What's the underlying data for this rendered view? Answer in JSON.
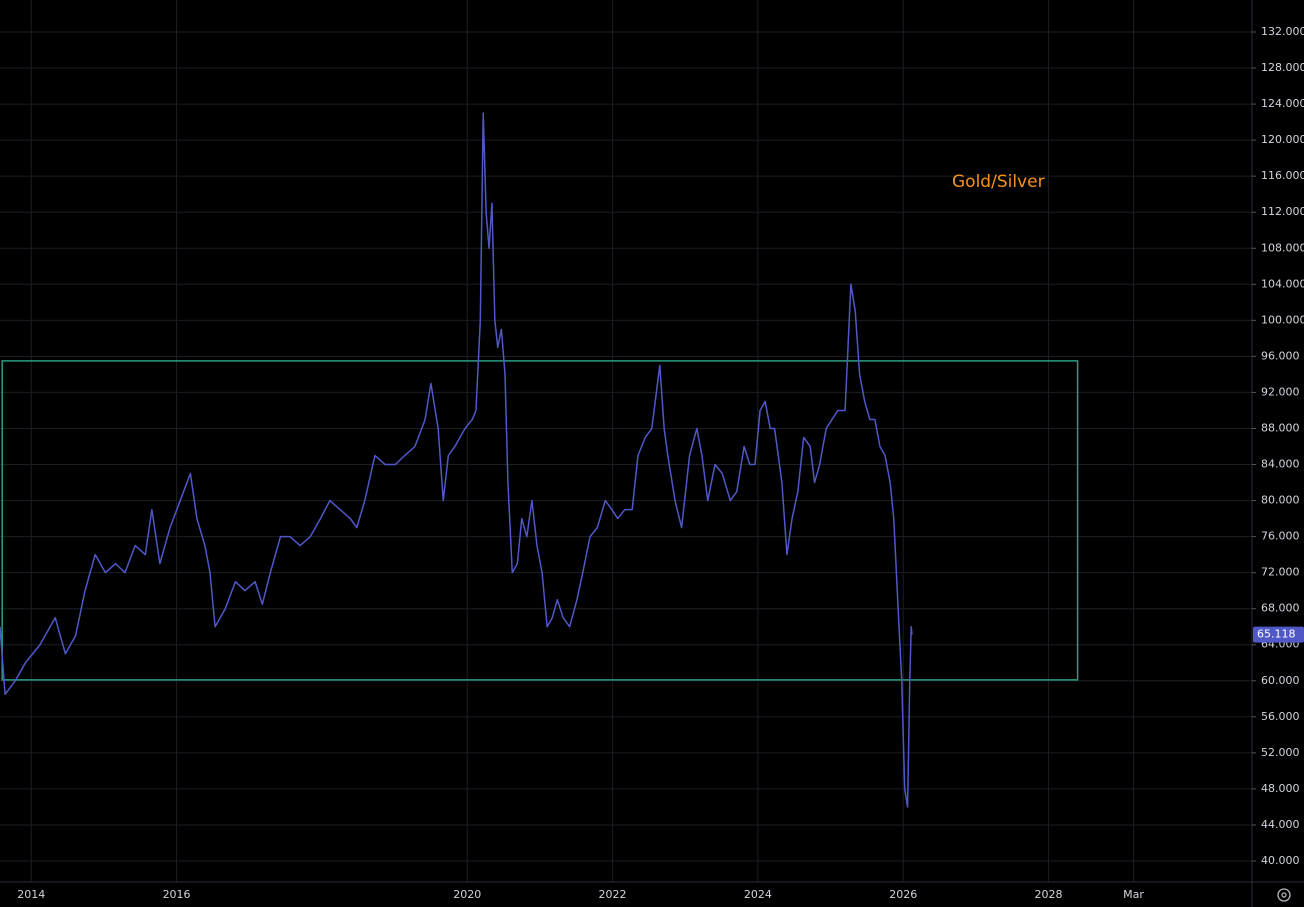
{
  "chart_data": {
    "type": "line",
    "annotation": "Gold/Silver",
    "xlim": [
      2013.57,
      2030.8
    ],
    "ylim": [
      37.67,
      135.55
    ],
    "xticks": [
      2014,
      2016,
      2020,
      2022,
      2024,
      2026,
      2028,
      {
        "value": 2029.17,
        "label": "Mar"
      }
    ],
    "yticks": [
      {
        "value": 40,
        "label": "40.000"
      },
      {
        "value": 44,
        "label": "44.000"
      },
      {
        "value": 48,
        "label": "48.000"
      },
      {
        "value": 52,
        "label": "52.000"
      },
      {
        "value": 56,
        "label": "56.000"
      },
      {
        "value": 60,
        "label": "60.000"
      },
      {
        "value": 64,
        "label": "64.000"
      },
      {
        "value": 68,
        "label": "68.000"
      },
      {
        "value": 72,
        "label": "72.000"
      },
      {
        "value": 76,
        "label": "76.000"
      },
      {
        "value": 80,
        "label": "80.000"
      },
      {
        "value": 84,
        "label": "84.000"
      },
      {
        "value": 88,
        "label": "88.000"
      },
      {
        "value": 92,
        "label": "92.000"
      },
      {
        "value": 96,
        "label": "96.000"
      },
      {
        "value": 100,
        "label": "100.000"
      },
      {
        "value": 104,
        "label": "104.000"
      },
      {
        "value": 108,
        "label": "108.000"
      },
      {
        "value": 112,
        "label": "112.000"
      },
      {
        "value": 116,
        "label": "116.000"
      },
      {
        "value": 120,
        "label": "120.000"
      },
      {
        "value": 124,
        "label": "124.000"
      },
      {
        "value": 128,
        "label": "128.000"
      },
      {
        "value": 132,
        "label": "132.000"
      }
    ],
    "grid": true,
    "box": {
      "x": [
        2013.6,
        2028.4
      ],
      "y": [
        60.1,
        95.5
      ],
      "color": "#2a9d84"
    },
    "series": [
      {
        "name": "Gold/Silver",
        "color": "#5058c8",
        "x": [
          2013.57,
          2013.64,
          2013.78,
          2013.92,
          2014.12,
          2014.33,
          2014.47,
          2014.61,
          2014.74,
          2014.88,
          2015.02,
          2015.16,
          2015.29,
          2015.43,
          2015.57,
          2015.66,
          2015.77,
          2015.91,
          2016.05,
          2016.19,
          2016.28,
          2016.39,
          2016.46,
          2016.53,
          2016.67,
          2016.81,
          2016.94,
          2017.08,
          2017.18,
          2017.29,
          2017.43,
          2017.56,
          2017.7,
          2017.84,
          2017.98,
          2018.11,
          2018.25,
          2018.39,
          2018.48,
          2018.59,
          2018.73,
          2018.87,
          2019.01,
          2019.14,
          2019.28,
          2019.42,
          2019.5,
          2019.6,
          2019.67,
          2019.74,
          2019.83,
          2019.97,
          2020.07,
          2020.12,
          2020.18,
          2020.22,
          2020.26,
          2020.3,
          2020.34,
          2020.38,
          2020.42,
          2020.47,
          2020.52,
          2020.56,
          2020.62,
          2020.69,
          2020.75,
          2020.82,
          2020.89,
          2020.96,
          2021.03,
          2021.1,
          2021.17,
          2021.24,
          2021.32,
          2021.41,
          2021.51,
          2021.59,
          2021.69,
          2021.79,
          2021.9,
          2021.99,
          2022.07,
          2022.17,
          2022.27,
          2022.35,
          2022.45,
          2022.54,
          2022.65,
          2022.71,
          2022.76,
          2022.86,
          2022.95,
          2023.06,
          2023.16,
          2023.23,
          2023.31,
          2023.41,
          2023.51,
          2023.62,
          2023.71,
          2023.81,
          2023.89,
          2023.96,
          2024.03,
          2024.1,
          2024.17,
          2024.23,
          2024.33,
          2024.4,
          2024.47,
          2024.55,
          2024.63,
          2024.72,
          2024.78,
          2024.85,
          2024.94,
          2025.02,
          2025.1,
          2025.2,
          2025.24,
          2025.28,
          2025.34,
          2025.4,
          2025.47,
          2025.54,
          2025.61,
          2025.68,
          2025.75,
          2025.82,
          2025.87,
          2025.93,
          2025.98,
          2026.02,
          2026.06,
          2026.09,
          2026.11,
          2026.12
        ],
        "values": [
          66,
          58.5,
          60,
          62,
          64,
          67,
          63,
          65,
          70,
          74,
          72,
          73,
          72,
          75,
          74,
          79,
          73,
          77,
          80,
          83,
          78,
          75,
          72,
          66,
          68,
          71,
          70,
          71,
          68.5,
          72,
          76,
          76,
          75,
          76,
          78,
          80,
          79,
          78,
          77,
          80,
          85,
          84,
          84,
          85,
          86,
          89,
          93,
          88,
          80,
          85,
          86,
          88,
          89,
          90,
          100,
          123,
          112,
          108,
          113,
          100,
          97,
          99,
          94,
          82,
          72,
          73,
          78,
          76,
          80,
          75,
          72,
          66,
          67,
          69,
          67,
          66,
          69,
          72,
          76,
          77,
          80,
          79,
          78,
          79,
          79,
          85,
          87,
          88,
          95,
          88,
          85,
          80,
          77,
          85,
          88,
          85,
          80,
          84,
          83,
          80,
          81,
          86,
          84,
          84,
          90,
          91,
          88,
          88,
          82,
          74,
          78,
          81,
          87,
          86,
          82,
          84,
          88,
          89,
          90,
          90,
          97,
          104,
          101,
          94,
          91,
          89,
          89,
          86,
          85,
          82,
          78,
          68,
          60,
          48,
          46,
          60,
          66,
          65.118
        ]
      }
    ]
  }
}
